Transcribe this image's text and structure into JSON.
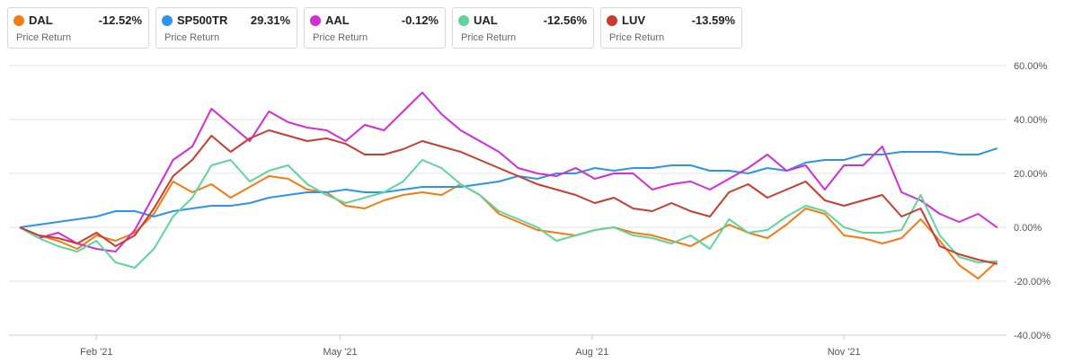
{
  "legend": [
    {
      "ticker": "DAL",
      "change": "-12.52%",
      "label": "Price Return",
      "color": "#f47b14"
    },
    {
      "ticker": "SP500TR",
      "change": "29.31%",
      "label": "Price Return",
      "color": "#2b95ec"
    },
    {
      "ticker": "AAL",
      "change": "-0.12%",
      "label": "Price Return",
      "color": "#d12ed6"
    },
    {
      "ticker": "UAL",
      "change": "-12.56%",
      "label": "Price Return",
      "color": "#5fd49d"
    },
    {
      "ticker": "LUV",
      "change": "-13.59%",
      "label": "Price Return",
      "color": "#c93c30"
    }
  ],
  "chart_data": {
    "type": "line",
    "title": "",
    "xlabel": "",
    "ylabel": "",
    "x_tick_labels": [
      "Feb '21",
      "May '21",
      "Aug '21",
      "Nov '21"
    ],
    "y_tick_labels": [
      "60.00%",
      "40.00%",
      "20.00%",
      "0.00%",
      "-20.00%",
      "-40.00%"
    ],
    "ylim": [
      -40,
      60
    ],
    "grid": true,
    "dates": [
      "2021-01-04",
      "2021-01-11",
      "2021-01-18",
      "2021-01-25",
      "2021-02-01",
      "2021-02-08",
      "2021-02-15",
      "2021-02-22",
      "2021-03-01",
      "2021-03-08",
      "2021-03-15",
      "2021-03-22",
      "2021-03-29",
      "2021-04-05",
      "2021-04-12",
      "2021-04-19",
      "2021-04-26",
      "2021-05-03",
      "2021-05-10",
      "2021-05-17",
      "2021-05-24",
      "2021-05-31",
      "2021-06-07",
      "2021-06-14",
      "2021-06-21",
      "2021-06-28",
      "2021-07-05",
      "2021-07-12",
      "2021-07-19",
      "2021-07-26",
      "2021-08-02",
      "2021-08-09",
      "2021-08-16",
      "2021-08-23",
      "2021-08-30",
      "2021-09-06",
      "2021-09-13",
      "2021-09-20",
      "2021-09-27",
      "2021-10-04",
      "2021-10-11",
      "2021-10-18",
      "2021-10-25",
      "2021-11-01",
      "2021-11-08",
      "2021-11-15",
      "2021-11-22",
      "2021-11-29",
      "2021-12-06",
      "2021-12-13",
      "2021-12-20",
      "2021-12-27"
    ],
    "series": [
      {
        "name": "DAL",
        "color": "#f47b14",
        "values": [
          0,
          -3,
          -5,
          -8,
          -3,
          -5,
          -2,
          5,
          17,
          13,
          16,
          11,
          15,
          19,
          18,
          14,
          13,
          8,
          7,
          10,
          12,
          13,
          12,
          16,
          12,
          5,
          2,
          -1,
          -2,
          -3,
          -1,
          0,
          -2,
          -3,
          -5,
          -7,
          -3,
          1,
          -2,
          -4,
          1,
          7,
          5,
          -3,
          -4,
          -6,
          -4,
          3,
          -5,
          -14,
          -19,
          -12.5
        ]
      },
      {
        "name": "SP500TR",
        "color": "#2b95ec",
        "values": [
          0,
          1,
          2,
          3,
          4,
          6,
          6,
          4,
          6,
          7,
          8,
          8,
          9,
          11,
          12,
          13,
          13,
          14,
          13,
          13,
          14,
          15,
          15,
          15,
          16,
          17,
          19,
          18,
          20,
          20,
          22,
          21,
          22,
          22,
          23,
          23,
          21,
          21,
          20,
          22,
          21,
          24,
          25,
          25,
          27,
          27,
          28,
          28,
          28,
          27,
          27,
          29.3
        ]
      },
      {
        "name": "AAL",
        "color": "#d12ed6",
        "values": [
          0,
          -4,
          -2,
          -6,
          -8,
          -9,
          -1,
          12,
          25,
          30,
          44,
          38,
          32,
          43,
          39,
          37,
          36,
          32,
          38,
          36,
          43,
          50,
          42,
          36,
          32,
          28,
          22,
          20,
          19,
          22,
          18,
          20,
          20,
          14,
          16,
          17,
          14,
          18,
          22,
          27,
          21,
          23,
          14,
          23,
          23,
          30,
          13,
          10,
          5,
          2,
          5,
          -0.1
        ]
      },
      {
        "name": "UAL",
        "color": "#5fd49d",
        "values": [
          0,
          -4,
          -7,
          -9,
          -5,
          -13,
          -15,
          -8,
          4,
          11,
          23,
          25,
          17,
          21,
          23,
          16,
          12,
          9,
          11,
          13,
          17,
          25,
          22,
          16,
          12,
          6,
          3,
          0,
          -5,
          -3,
          -1,
          0,
          -3,
          -4,
          -6,
          -3,
          -8,
          3,
          -2,
          -1,
          4,
          8,
          6,
          0,
          -2,
          -2,
          -1,
          12,
          -3,
          -11,
          -13,
          -12.6
        ]
      },
      {
        "name": "LUV",
        "color": "#c93c30",
        "values": [
          0,
          -3,
          -4,
          -6,
          -2,
          -7,
          -3,
          7,
          19,
          25,
          34,
          28,
          33,
          36,
          34,
          32,
          33,
          31,
          27,
          27,
          29,
          32,
          30,
          28,
          25,
          22,
          19,
          16,
          14,
          12,
          9,
          11,
          7,
          6,
          9,
          6,
          4,
          13,
          16,
          11,
          14,
          17,
          10,
          8,
          10,
          12,
          4,
          7,
          -7,
          -10,
          -12,
          -13.6
        ]
      }
    ]
  }
}
